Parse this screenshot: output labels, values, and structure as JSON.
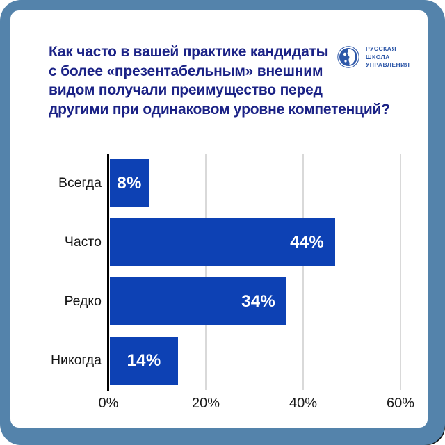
{
  "page": {
    "background": "#ffffff",
    "frame_color": "#5483ab",
    "corner_shadow_color": "#0c0c0c",
    "card_background": "#ffffff"
  },
  "header": {
    "title_lines": [
      "Как часто в вашей практике кандидаты",
      "с более «презентабельным» внешним",
      "видом получали преимущество перед",
      "другими при одинаковом уровне компетенций?"
    ],
    "title_color": "#1b2286",
    "logo": {
      "icon": "rsu-globe-icon",
      "text_lines": [
        "РУССКАЯ",
        "ШКОЛА",
        "УПРАВЛЕНИЯ"
      ],
      "color": "#2d57a8"
    }
  },
  "chart_data": {
    "type": "bar",
    "orientation": "horizontal",
    "title": "Как часто в вашей практике кандидаты с более «презентабельным» внешним видом получали преимущество перед другими при одинаковом уровне компетенций?",
    "categories": [
      "Всегда",
      "Часто",
      "Редко",
      "Никогда"
    ],
    "values": [
      8,
      44,
      34,
      14
    ],
    "value_labels": [
      "8%",
      "44%",
      "34%",
      "14%"
    ],
    "x_ticks": [
      {
        "value": 0,
        "label": "0%"
      },
      {
        "value": 20,
        "label": "20%"
      },
      {
        "value": 40,
        "label": "40%"
      },
      {
        "value": 60,
        "label": "60%"
      }
    ],
    "xlim": [
      0,
      60
    ],
    "grid": true,
    "legend": false,
    "bar_color": "#0d41b4",
    "value_label_color": "#ffffff",
    "category_label_color": "#141414",
    "tick_label_color": "#1a1a1a",
    "axis_color": "#000000",
    "grid_color": "#d9d9d9"
  }
}
